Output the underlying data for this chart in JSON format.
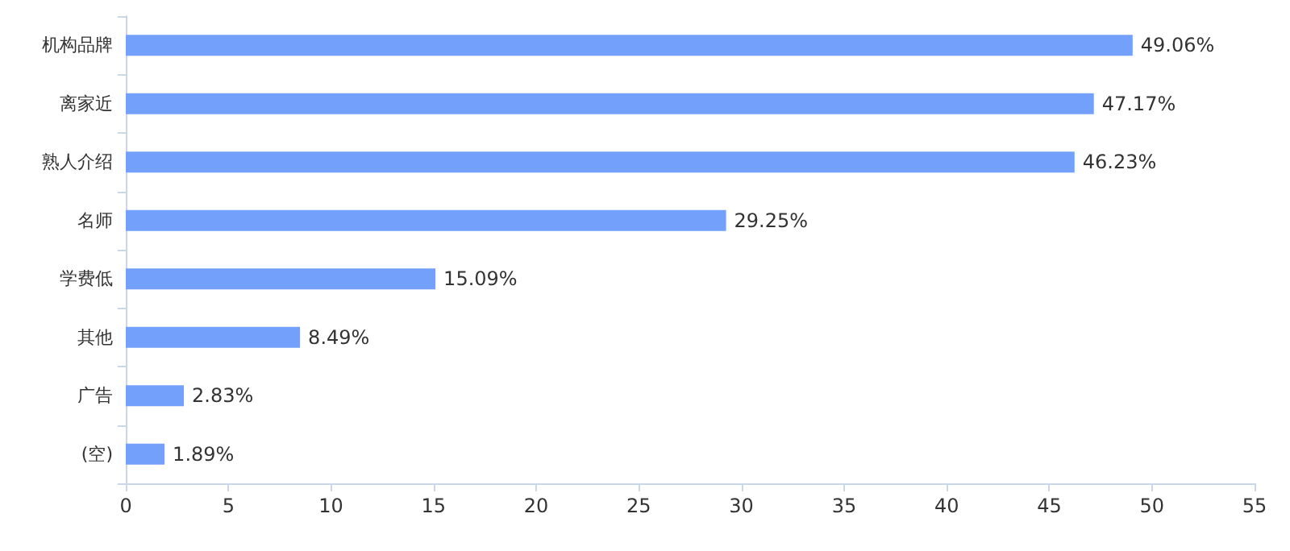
{
  "chart_data": {
    "type": "bar",
    "orientation": "horizontal",
    "categories": [
      "机构品牌",
      "离家近",
      "熟人介绍",
      "名师",
      "学费低",
      "其他",
      "广告",
      "(空)"
    ],
    "values": [
      49.06,
      47.17,
      46.23,
      29.25,
      15.09,
      8.49,
      2.83,
      1.89
    ],
    "value_labels": [
      "49.06%",
      "47.17%",
      "46.23%",
      "29.25%",
      "15.09%",
      "8.49%",
      "2.83%",
      "1.89%"
    ],
    "color": "#73a0fa",
    "xlim": [
      0,
      55
    ],
    "xticks": [
      0,
      5,
      10,
      15,
      20,
      25,
      30,
      35,
      40,
      45,
      50,
      55
    ],
    "grid": false
  }
}
